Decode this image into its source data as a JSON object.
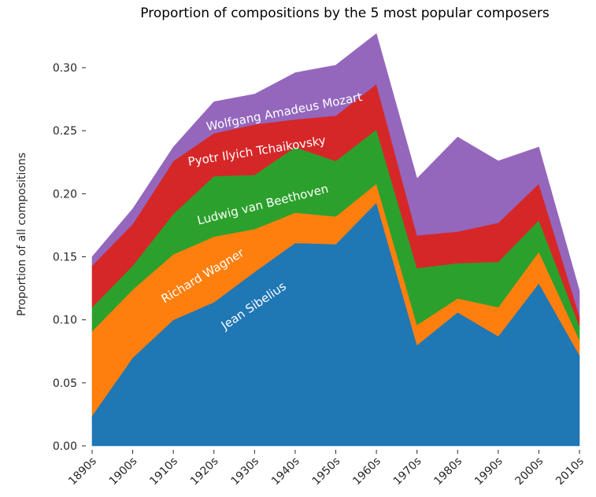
{
  "chart_data": {
    "type": "area",
    "stacked": true,
    "title": "Proportion of compositions by the 5 most popular composers",
    "xlabel": "",
    "ylabel": "Proportion of all compositions",
    "categories": [
      "1890s",
      "1900s",
      "1910s",
      "1920s",
      "1930s",
      "1940s",
      "1950s",
      "1960s",
      "1970s",
      "1980s",
      "1990s",
      "2000s",
      "2010s"
    ],
    "ylim": [
      0,
      0.32
    ],
    "yticks": [
      0.0,
      0.05,
      0.1,
      0.15,
      0.2,
      0.25,
      0.3
    ],
    "ytick_labels": [
      "0.00",
      "0.05",
      "0.10",
      "0.15",
      "0.20",
      "0.25",
      "0.30"
    ],
    "grid": false,
    "legend": "inline labels",
    "series": [
      {
        "name": "Jean Sibelius",
        "color": "#1f77b4",
        "values": [
          0.024,
          0.07,
          0.1,
          0.114,
          0.138,
          0.161,
          0.16,
          0.193,
          0.08,
          0.106,
          0.087,
          0.129,
          0.072
        ]
      },
      {
        "name": "Richard Wagner",
        "color": "#ff7f0e",
        "values": [
          0.067,
          0.054,
          0.052,
          0.052,
          0.034,
          0.024,
          0.022,
          0.015,
          0.016,
          0.011,
          0.023,
          0.025,
          0.012
        ]
      },
      {
        "name": "Ludwig van Beethoven",
        "color": "#2ca02c",
        "values": [
          0.019,
          0.019,
          0.032,
          0.048,
          0.043,
          0.052,
          0.044,
          0.043,
          0.045,
          0.028,
          0.036,
          0.025,
          0.011
        ]
      },
      {
        "name": "Pyotr Ilyich Tchaikovsky",
        "color": "#d62728",
        "values": [
          0.033,
          0.033,
          0.042,
          0.034,
          0.04,
          0.022,
          0.036,
          0.036,
          0.026,
          0.025,
          0.031,
          0.029,
          0.008
        ]
      },
      {
        "name": "Wolfgang Amadeus Mozart",
        "color": "#9467bd",
        "values": [
          0.007,
          0.012,
          0.011,
          0.025,
          0.024,
          0.037,
          0.04,
          0.04,
          0.045,
          0.075,
          0.049,
          0.029,
          0.02
        ]
      }
    ]
  }
}
